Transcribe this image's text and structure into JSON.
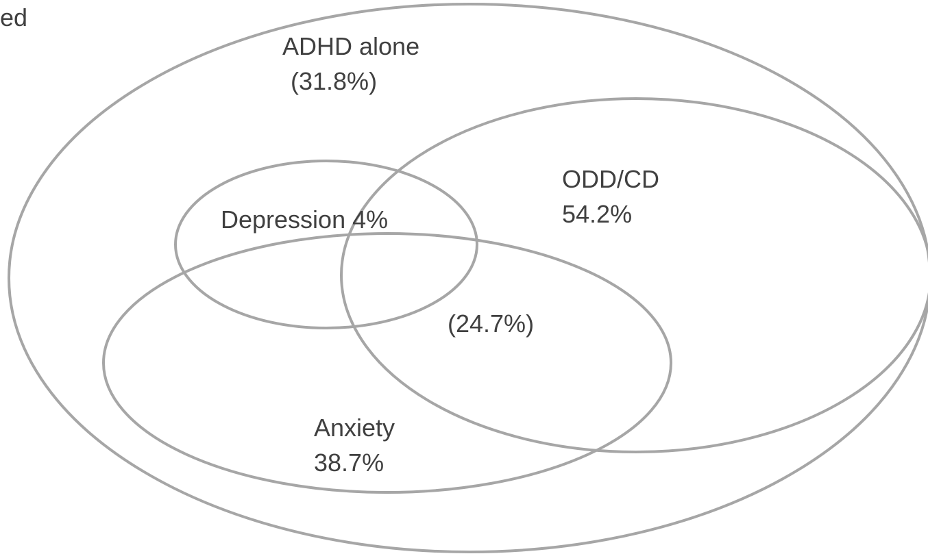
{
  "colors": {
    "outline": "#a6a6a6",
    "text": "#404040",
    "background": "#ffffff"
  },
  "corner_text": "ed",
  "regions": {
    "adhd": {
      "line1": "ADHD alone",
      "line2": " (31.8%)"
    },
    "odd_cd": {
      "line1": "ODD/CD",
      "line2": "54.2%"
    },
    "depression": {
      "line1": "Depression 4%"
    },
    "overlap": {
      "line1": "(24.7%)"
    },
    "anxiety": {
      "line1": "Anxiety",
      "line2": "38.7%"
    }
  }
}
